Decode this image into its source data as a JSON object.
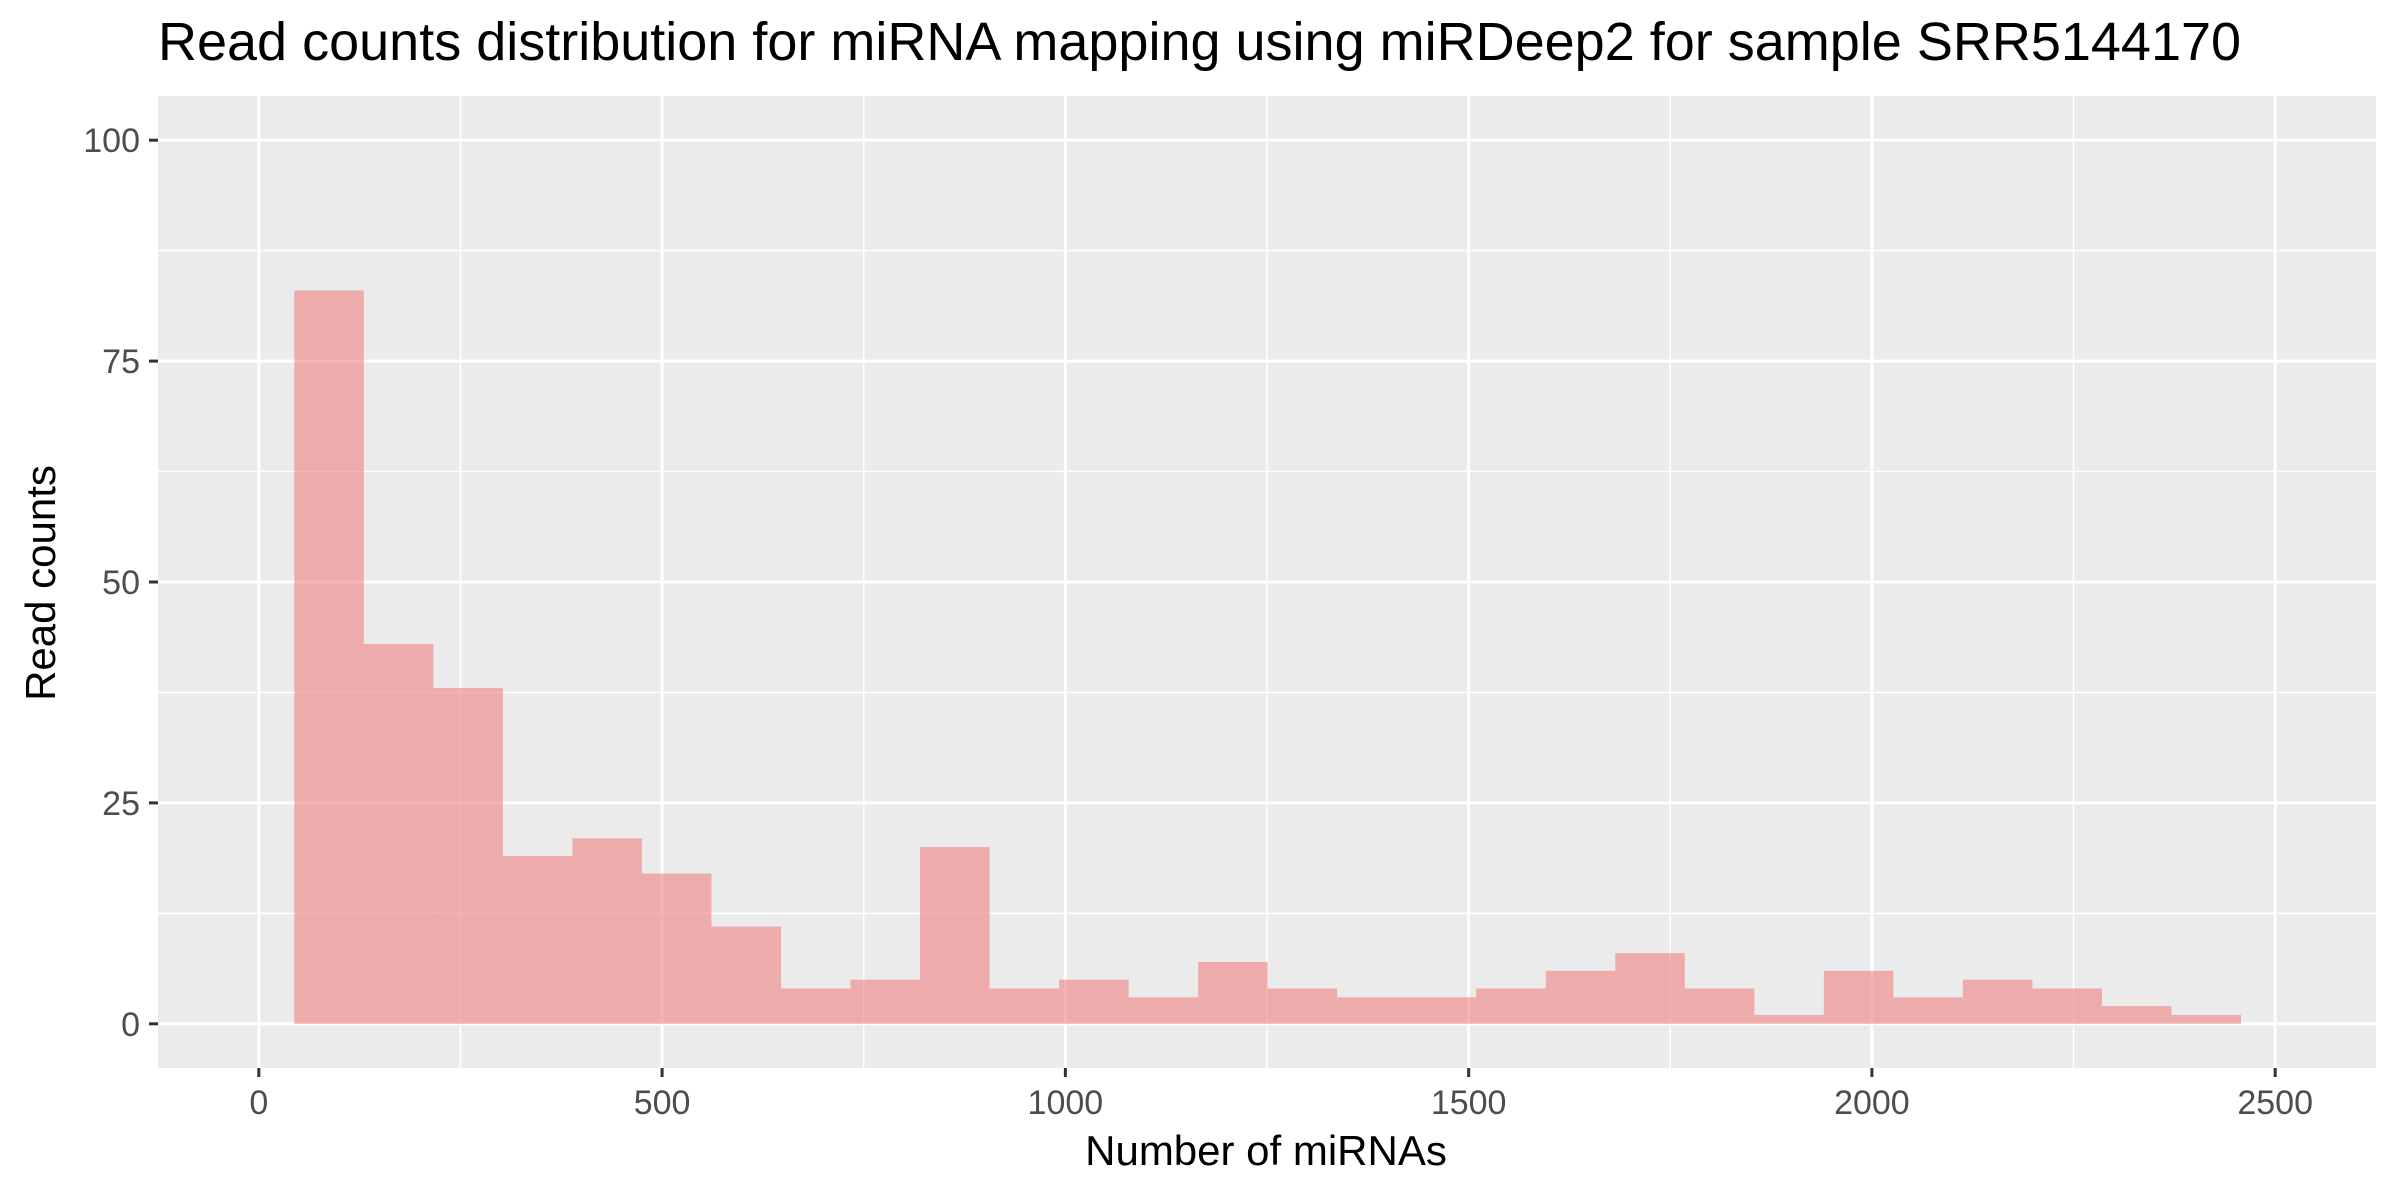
{
  "chart_data": {
    "type": "bar",
    "title": "Read counts distribution for miRNA mapping using miRDeep2 for sample SRR5144170",
    "xlabel": "Number of miRNAs",
    "ylabel": "Read counts",
    "xlim": [
      -125,
      2625
    ],
    "ylim": [
      -5,
      105
    ],
    "xticks": [
      0,
      500,
      1000,
      1500,
      2000,
      2500
    ],
    "yticks": [
      0,
      25,
      50,
      75,
      100
    ],
    "grid": true,
    "bin_width": 86.2,
    "bins": [
      {
        "x0": 44,
        "count": 83
      },
      {
        "x0": 130.2,
        "count": 43
      },
      {
        "x0": 216.4,
        "count": 38
      },
      {
        "x0": 302.6,
        "count": 19
      },
      {
        "x0": 388.8,
        "count": 21
      },
      {
        "x0": 475,
        "count": 17
      },
      {
        "x0": 561.2,
        "count": 11
      },
      {
        "x0": 647.4,
        "count": 4
      },
      {
        "x0": 733.6,
        "count": 5
      },
      {
        "x0": 819.8,
        "count": 20
      },
      {
        "x0": 906,
        "count": 4
      },
      {
        "x0": 992.2,
        "count": 5
      },
      {
        "x0": 1078.4,
        "count": 3
      },
      {
        "x0": 1164.6,
        "count": 7
      },
      {
        "x0": 1250.8,
        "count": 4
      },
      {
        "x0": 1337,
        "count": 3
      },
      {
        "x0": 1423.2,
        "count": 3
      },
      {
        "x0": 1509.4,
        "count": 4
      },
      {
        "x0": 1595.6,
        "count": 6
      },
      {
        "x0": 1681.8,
        "count": 8
      },
      {
        "x0": 1768,
        "count": 4
      },
      {
        "x0": 1854.2,
        "count": 1
      },
      {
        "x0": 1940.4,
        "count": 6
      },
      {
        "x0": 2026.6,
        "count": 3
      },
      {
        "x0": 2112.8,
        "count": 5
      },
      {
        "x0": 2199,
        "count": 4
      },
      {
        "x0": 2285.2,
        "count": 2
      },
      {
        "x0": 2371.4,
        "count": 1
      }
    ],
    "colors": {
      "bar_fill": "#f08080",
      "panel_bg": "#ebebeb",
      "grid": "#ffffff",
      "tick_text": "#4d4d4d",
      "tick_mark": "#333333"
    }
  }
}
